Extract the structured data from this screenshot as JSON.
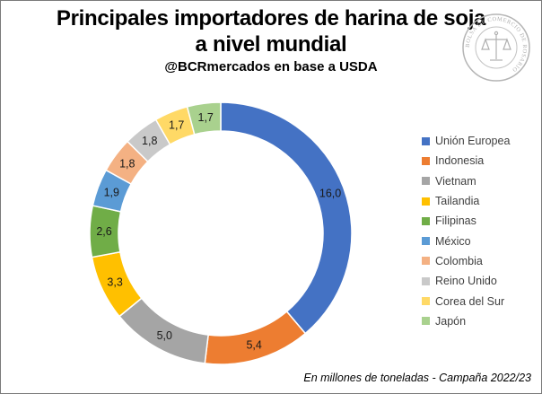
{
  "title_line1": "Principales importadores de harina de soja",
  "title_line2": "a nivel mundial",
  "subtitle": "@BCRmercados en base a USDA",
  "footnote": "En millones de toneladas - Campaña 2022/23",
  "seal": {
    "text": "BOLSA DE COMERCIO DE ROSARIO",
    "icon": "scales-of-justice-seal"
  },
  "chart_data": {
    "type": "pie",
    "variant": "donut",
    "start_angle_deg": 0,
    "direction": "clockwise",
    "legend_position": "right",
    "categories": [
      "Unión Europea",
      "Indonesia",
      "Vietnam",
      "Tailandia",
      "Filipinas",
      "México",
      "Colombia",
      "Reino Unido",
      "Corea del Sur",
      "Japón"
    ],
    "values": [
      16.0,
      5.4,
      5.0,
      3.3,
      2.6,
      1.9,
      1.8,
      1.8,
      1.7,
      1.7
    ],
    "value_labels": [
      "16,0",
      "5,4",
      "5,0",
      "3,3",
      "2,6",
      "1,9",
      "1,8",
      "1,8",
      "1,7",
      "1,7"
    ],
    "colors": [
      "#4472c4",
      "#ed7d31",
      "#a5a5a5",
      "#ffc000",
      "#70ad47",
      "#5b9bd5",
      "#f4b183",
      "#c9c9c9",
      "#ffd966",
      "#a9d18e"
    ]
  }
}
